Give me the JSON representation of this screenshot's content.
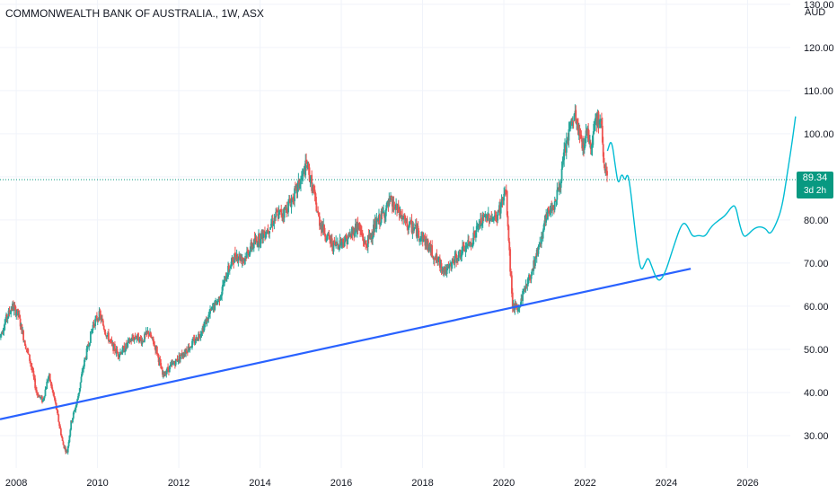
{
  "header": {
    "symbol_title": "COMMONWEALTH BANK OF AUSTRALIA., 1W, ASX",
    "currency": "AUD"
  },
  "price_tag": {
    "price": "89.34",
    "countdown": "3d 2h"
  },
  "colors": {
    "up": "#26a69a",
    "down": "#ef5350",
    "trendline": "#2962ff",
    "projection": "#00bcd4",
    "price_line": "#089981",
    "axis_text": "#131722"
  },
  "chart_data": {
    "type": "candlestick",
    "interval": "1W",
    "y_axis": {
      "ticks": [
        "30.00",
        "40.00",
        "50.00",
        "60.00",
        "70.00",
        "80.00",
        "90.00",
        "100.00",
        "110.00",
        "120.00",
        "130.00"
      ],
      "range": [
        22.5,
        131
      ],
      "position": "right",
      "unit": "AUD"
    },
    "x_axis": {
      "ticks": [
        "2008",
        "2010",
        "2012",
        "2014",
        "2016",
        "2018",
        "2020",
        "2022",
        "2024",
        "2026"
      ],
      "range": [
        2007.6,
        2028.2
      ]
    },
    "grid": true,
    "last_price": 89.34,
    "price_path": [
      [
        2007.6,
        53
      ],
      [
        2007.75,
        57
      ],
      [
        2007.9,
        60
      ],
      [
        2008.05,
        58
      ],
      [
        2008.2,
        52
      ],
      [
        2008.35,
        47
      ],
      [
        2008.5,
        40
      ],
      [
        2008.65,
        38
      ],
      [
        2008.8,
        44
      ],
      [
        2008.95,
        38
      ],
      [
        2009.05,
        33
      ],
      [
        2009.15,
        28
      ],
      [
        2009.25,
        26
      ],
      [
        2009.35,
        33
      ],
      [
        2009.5,
        38
      ],
      [
        2009.65,
        46
      ],
      [
        2009.8,
        52
      ],
      [
        2009.9,
        56
      ],
      [
        2010.05,
        58
      ],
      [
        2010.2,
        54
      ],
      [
        2010.35,
        51
      ],
      [
        2010.5,
        49
      ],
      [
        2010.65,
        50
      ],
      [
        2010.8,
        52
      ],
      [
        2010.95,
        53
      ],
      [
        2011.1,
        52
      ],
      [
        2011.25,
        54
      ],
      [
        2011.45,
        50
      ],
      [
        2011.6,
        44
      ],
      [
        2011.8,
        46
      ],
      [
        2012.0,
        48
      ],
      [
        2012.2,
        50
      ],
      [
        2012.4,
        52
      ],
      [
        2012.6,
        55
      ],
      [
        2012.8,
        59
      ],
      [
        2013.0,
        62
      ],
      [
        2013.2,
        68
      ],
      [
        2013.4,
        72
      ],
      [
        2013.6,
        71
      ],
      [
        2013.8,
        74
      ],
      [
        2014.0,
        76
      ],
      [
        2014.2,
        78
      ],
      [
        2014.4,
        81
      ],
      [
        2014.6,
        82
      ],
      [
        2014.8,
        85
      ],
      [
        2015.0,
        89
      ],
      [
        2015.15,
        93
      ],
      [
        2015.3,
        87
      ],
      [
        2015.45,
        80
      ],
      [
        2015.6,
        77
      ],
      [
        2015.8,
        74
      ],
      [
        2016.0,
        75
      ],
      [
        2016.2,
        76
      ],
      [
        2016.4,
        79
      ],
      [
        2016.6,
        74
      ],
      [
        2016.8,
        78
      ],
      [
        2017.0,
        81
      ],
      [
        2017.2,
        84
      ],
      [
        2017.4,
        82
      ],
      [
        2017.6,
        79
      ],
      [
        2017.8,
        78
      ],
      [
        2018.0,
        76
      ],
      [
        2018.2,
        73
      ],
      [
        2018.4,
        70
      ],
      [
        2018.6,
        68
      ],
      [
        2018.8,
        71
      ],
      [
        2019.0,
        73
      ],
      [
        2019.2,
        75
      ],
      [
        2019.4,
        79
      ],
      [
        2019.6,
        81
      ],
      [
        2019.8,
        80
      ],
      [
        2019.95,
        84
      ],
      [
        2020.05,
        87
      ],
      [
        2020.15,
        70
      ],
      [
        2020.22,
        60
      ],
      [
        2020.35,
        59
      ],
      [
        2020.5,
        64
      ],
      [
        2020.65,
        67
      ],
      [
        2020.8,
        72
      ],
      [
        2020.95,
        77
      ],
      [
        2021.1,
        82
      ],
      [
        2021.25,
        84
      ],
      [
        2021.4,
        89
      ],
      [
        2021.5,
        96
      ],
      [
        2021.62,
        101
      ],
      [
        2021.75,
        104
      ],
      [
        2021.85,
        100
      ],
      [
        2021.95,
        97
      ],
      [
        2022.05,
        101
      ],
      [
        2022.15,
        97
      ],
      [
        2022.25,
        104
      ],
      [
        2022.4,
        102
      ],
      [
        2022.48,
        92
      ],
      [
        2022.55,
        89.34
      ]
    ],
    "annotations": [
      {
        "type": "trendline",
        "points": [
          [
            2007.6,
            33.8
          ],
          [
            2024.6,
            68.7
          ]
        ],
        "color": "#2962ff"
      },
      {
        "type": "projection_path",
        "color": "#00bcd4",
        "points": [
          [
            2022.55,
            96
          ],
          [
            2022.65,
            99
          ],
          [
            2022.75,
            92
          ],
          [
            2022.82,
            88
          ],
          [
            2022.9,
            91
          ],
          [
            2022.98,
            89
          ],
          [
            2023.05,
            91
          ],
          [
            2023.12,
            87
          ],
          [
            2023.2,
            80
          ],
          [
            2023.3,
            72
          ],
          [
            2023.38,
            68
          ],
          [
            2023.48,
            70
          ],
          [
            2023.55,
            71.5
          ],
          [
            2023.65,
            69
          ],
          [
            2023.75,
            66.5
          ],
          [
            2023.85,
            65.8
          ],
          [
            2023.98,
            68
          ],
          [
            2024.1,
            71.5
          ],
          [
            2024.22,
            75
          ],
          [
            2024.35,
            78.5
          ],
          [
            2024.45,
            79.5
          ],
          [
            2024.55,
            78
          ],
          [
            2024.65,
            76
          ],
          [
            2024.8,
            76.5
          ],
          [
            2024.95,
            76
          ],
          [
            2025.1,
            78.5
          ],
          [
            2025.3,
            80
          ],
          [
            2025.45,
            81
          ],
          [
            2025.6,
            83
          ],
          [
            2025.7,
            83.5
          ],
          [
            2025.8,
            79
          ],
          [
            2025.9,
            76
          ],
          [
            2026.0,
            76.5
          ],
          [
            2026.15,
            78
          ],
          [
            2026.3,
            78.5
          ],
          [
            2026.45,
            78
          ],
          [
            2026.55,
            76.5
          ],
          [
            2026.7,
            79
          ],
          [
            2026.85,
            83
          ],
          [
            2026.98,
            91
          ],
          [
            2027.08,
            97
          ],
          [
            2027.18,
            104
          ]
        ]
      }
    ]
  }
}
